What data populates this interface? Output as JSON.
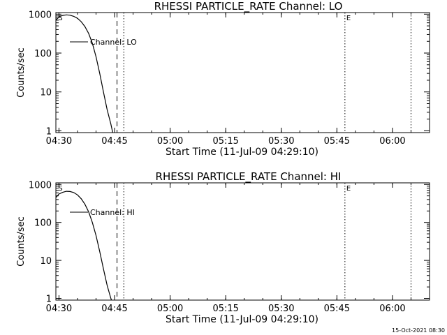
{
  "footer": {
    "timestamp": "15-Oct-2021 08:30"
  },
  "chart_data": [
    {
      "type": "line",
      "title": "RHESSI PARTICLE_RATE Channel: LO",
      "xlabel": "Start Time (11-Jul-09 04:29:10)",
      "ylabel": "Counts/sec",
      "yscale": "log",
      "ylim": [
        0.9,
        1100
      ],
      "xlim": [
        "04:29:10",
        "06:10:00"
      ],
      "x_ticks": [
        "04:30",
        "04:45",
        "05:00",
        "05:15",
        "05:30",
        "05:45",
        "06:00"
      ],
      "y_ticks": [
        "1",
        "10",
        "100",
        "1000"
      ],
      "legend": {
        "position": "top-left",
        "entries": [
          "Channel: LO"
        ]
      },
      "series": [
        {
          "name": "Channel: LO",
          "x": [
            "04:29:10",
            "04:30:00",
            "04:31:00",
            "04:32:00",
            "04:33:00",
            "04:34:00",
            "04:35:00",
            "04:36:00",
            "04:37:00",
            "04:38:00",
            "04:39:00",
            "04:40:00",
            "04:41:00",
            "04:42:00",
            "04:43:00",
            "04:44:00",
            "04:44:30"
          ],
          "values": [
            700,
            850,
            930,
            960,
            940,
            880,
            780,
            640,
            480,
            320,
            180,
            80,
            30,
            10,
            3.5,
            1.5,
            0.9
          ]
        }
      ],
      "vlines": [
        {
          "x": "04:45:40",
          "style": "dashed"
        },
        {
          "x": "04:47:30",
          "style": "dotted"
        },
        {
          "x": "05:47:10",
          "style": "dotted",
          "label": "E"
        },
        {
          "x": "06:05:00",
          "style": "dotted"
        }
      ],
      "markers": [
        {
          "x": "04:30:00",
          "label": "S"
        }
      ]
    },
    {
      "type": "line",
      "title": "RHESSI PARTICLE_RATE Channel: HI",
      "xlabel": "Start Time (11-Jul-09 04:29:10)",
      "ylabel": "Counts/sec",
      "yscale": "log",
      "ylim": [
        0.9,
        1100
      ],
      "xlim": [
        "04:29:10",
        "06:10:00"
      ],
      "x_ticks": [
        "04:30",
        "04:45",
        "05:00",
        "05:15",
        "05:30",
        "05:45",
        "06:00"
      ],
      "y_ticks": [
        "1",
        "10",
        "100",
        "1000"
      ],
      "legend": {
        "position": "top-left",
        "entries": [
          "Channel: HI"
        ]
      },
      "series": [
        {
          "name": "Channel: HI",
          "x": [
            "04:29:10",
            "04:30:00",
            "04:31:00",
            "04:32:00",
            "04:33:00",
            "04:34:00",
            "04:35:00",
            "04:36:00",
            "04:37:00",
            "04:38:00",
            "04:39:00",
            "04:40:00",
            "04:41:00",
            "04:42:00",
            "04:43:00",
            "04:44:00",
            "04:44:10"
          ],
          "values": [
            450,
            560,
            620,
            660,
            650,
            610,
            530,
            420,
            300,
            190,
            100,
            45,
            17,
            6,
            2.2,
            1.0,
            0.9
          ]
        }
      ],
      "vlines": [
        {
          "x": "04:45:40",
          "style": "dashed"
        },
        {
          "x": "04:47:30",
          "style": "dotted"
        },
        {
          "x": "05:47:10",
          "style": "dotted",
          "label": "E"
        },
        {
          "x": "06:05:00",
          "style": "dotted"
        }
      ],
      "markers": [
        {
          "x": "04:30:00",
          "label": "S"
        }
      ]
    }
  ]
}
